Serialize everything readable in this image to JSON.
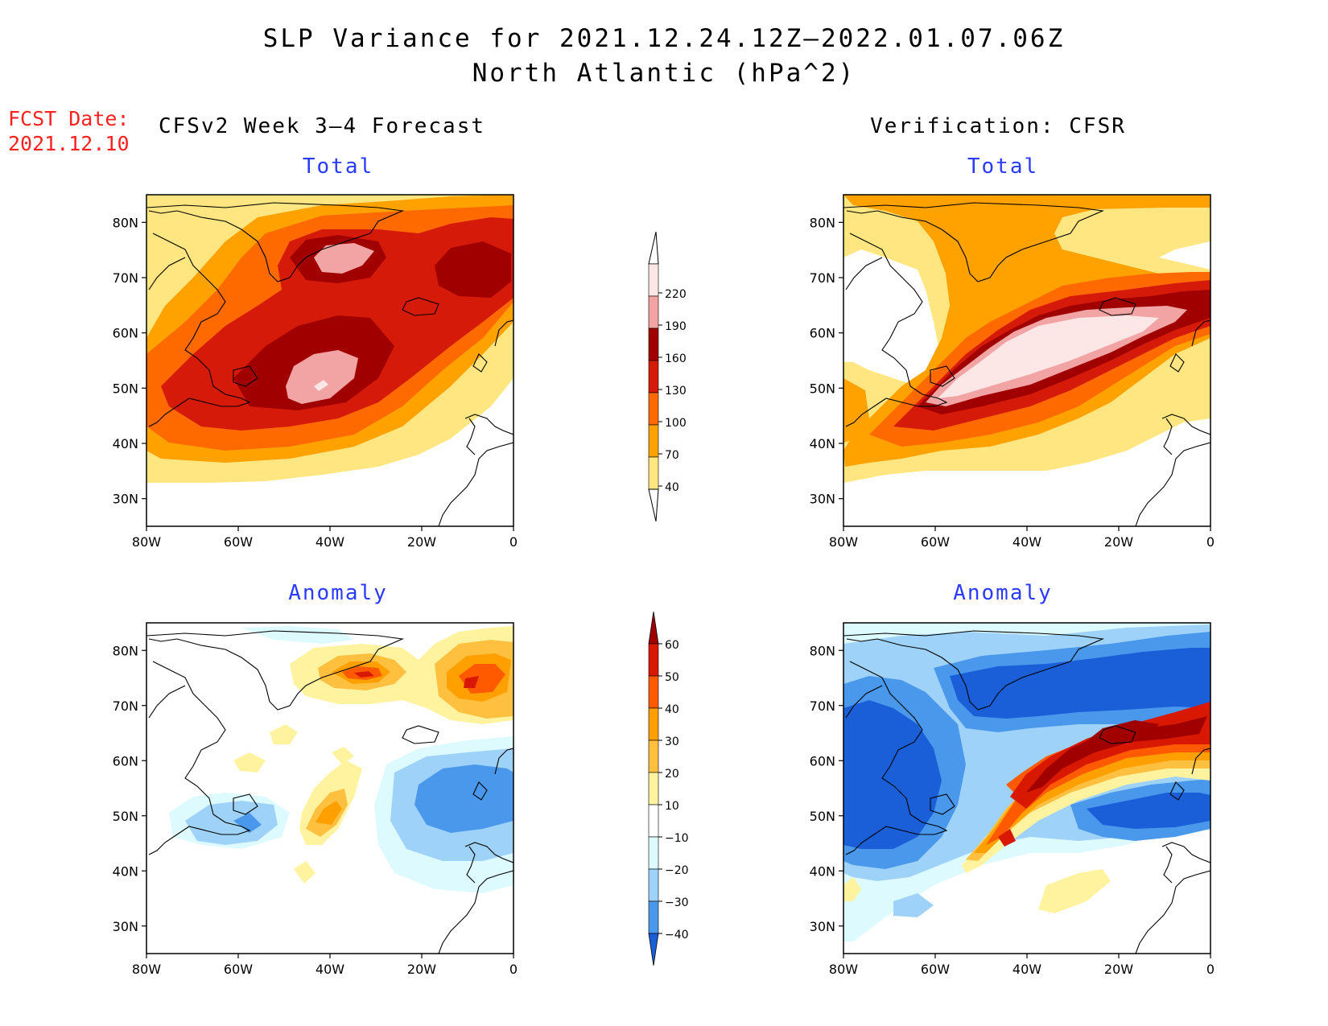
{
  "header": {
    "title_line1": "SLP Variance for 2021.12.24.12Z–2022.01.07.06Z",
    "title_line2": "North Atlantic (hPa^2)",
    "fcst_label": "FCST Date:",
    "fcst_value": "2021.12.10"
  },
  "columns": {
    "left_title": "CFSv2 Week 3–4 Forecast",
    "right_title": "Verification: CFSR"
  },
  "panels": {
    "total_label": "Total",
    "anomaly_label": "Anomaly"
  },
  "axes": {
    "lat_labels": [
      "80N",
      "70N",
      "60N",
      "50N",
      "40N",
      "30N"
    ],
    "lon_labels": [
      "80W",
      "60W",
      "40W",
      "20W",
      "0"
    ]
  },
  "colorbars": {
    "total": {
      "levels": [
        "220",
        "190",
        "160",
        "130",
        "100",
        "70",
        "40"
      ],
      "colors": [
        "#fde6e6",
        "#f2a3a3",
        "#a00000",
        "#d61a0a",
        "#ff6a00",
        "#ffa200",
        "#ffe680"
      ]
    },
    "anomaly": {
      "levels": [
        "60",
        "50",
        "40",
        "30",
        "20",
        "10",
        "−10",
        "−20",
        "−30",
        "−40"
      ],
      "colors": [
        "#a00000",
        "#d81800",
        "#ff5a00",
        "#ffa000",
        "#ffc040",
        "#fff3a0",
        "#ffffff",
        "#ddfaff",
        "#9fd2f8",
        "#4a98ec",
        "#1a5fd8"
      ]
    }
  }
}
